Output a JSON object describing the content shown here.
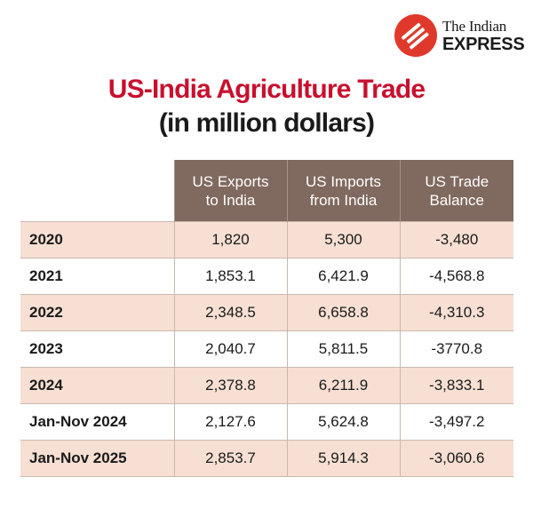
{
  "brand": {
    "line1": "The Indian",
    "line2": "EXPRESS",
    "color": "#e0392b"
  },
  "chart_data": {
    "type": "table",
    "title": "US-India Agriculture Trade",
    "subtitle": "(in million dollars)",
    "columns": [
      "US Exports\nto India",
      "US Imports\nfrom India",
      "US Trade\nBalance"
    ],
    "rows": [
      {
        "label": "2020",
        "values": [
          "1,820",
          "5,300",
          "-3,480"
        ]
      },
      {
        "label": "2021",
        "values": [
          "1,853.1",
          "6,421.9",
          "-4,568.8"
        ]
      },
      {
        "label": "2022",
        "values": [
          "2,348.5",
          "6,658.8",
          "-4,310.3"
        ]
      },
      {
        "label": "2023",
        "values": [
          "2,040.7",
          "5,811.5",
          "-3770.8"
        ]
      },
      {
        "label": "2024",
        "values": [
          "2,378.8",
          "6,211.9",
          "-3,833.1"
        ]
      },
      {
        "label": "Jan-Nov 2024",
        "values": [
          "2,127.6",
          "5,624.8",
          "-3,497.2"
        ]
      },
      {
        "label": "Jan-Nov 2025",
        "values": [
          "2,853.7",
          "5,914.3",
          "-3,060.6"
        ]
      }
    ],
    "colors": {
      "title": "#c8102e",
      "header_bg": "#80695f",
      "stripe_bg": "#f7dfd3"
    }
  }
}
